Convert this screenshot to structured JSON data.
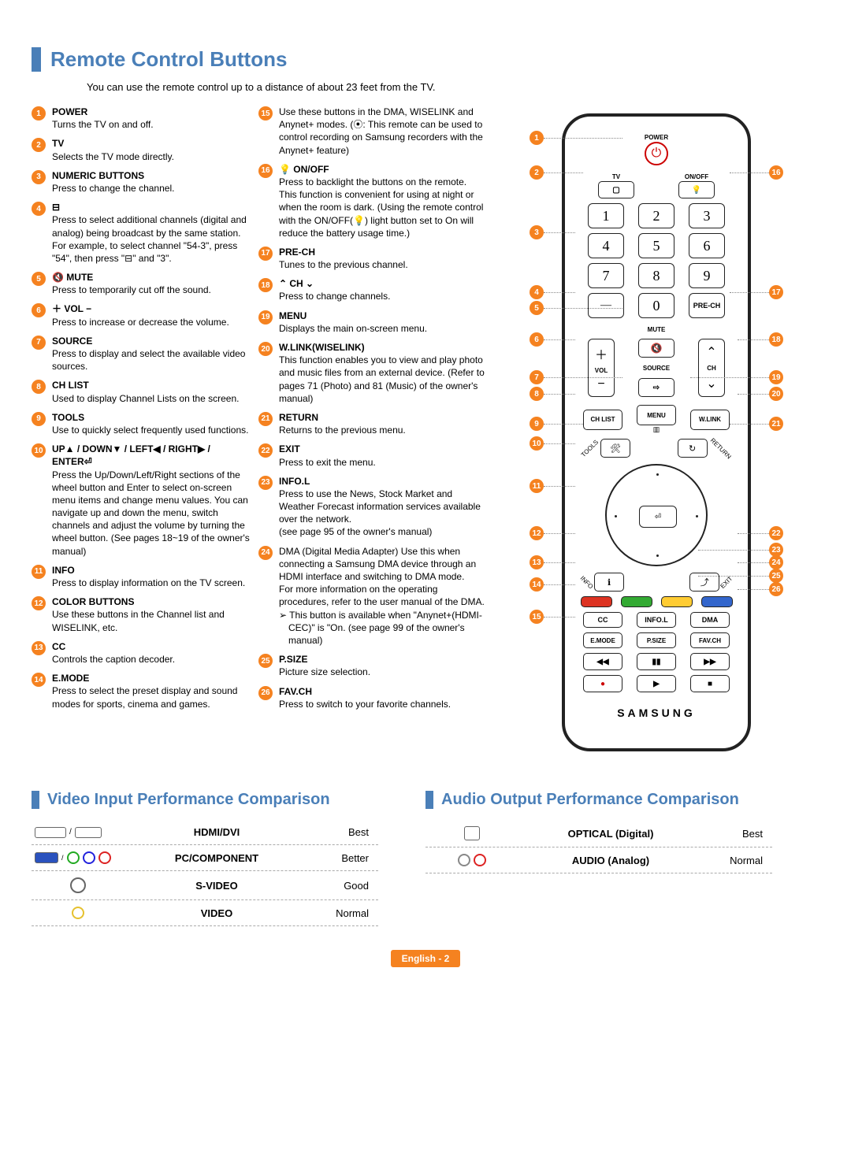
{
  "title": "Remote Control Buttons",
  "intro": "You can use the remote control up to a distance of about 23 feet from the TV.",
  "colors": {
    "accent": "#4a7fb8",
    "badge": "#f58220",
    "power": "#c00"
  },
  "left_items": [
    {
      "n": 1,
      "title": "POWER",
      "desc": "Turns the TV on and off."
    },
    {
      "n": 2,
      "title": "TV",
      "desc": "Selects the TV mode directly."
    },
    {
      "n": 3,
      "title": "NUMERIC BUTTONS",
      "desc": "Press to change the channel."
    },
    {
      "n": 4,
      "title": "⊟",
      "desc": "Press to select additional channels (digital and analog) being broadcast by the same station. For example, to select channel \"54-3\", press \"54\", then press \"⊟\" and \"3\"."
    },
    {
      "n": 5,
      "title": "🔇 MUTE",
      "desc": "Press to temporarily cut off the sound."
    },
    {
      "n": 6,
      "title": "＋ VOL −",
      "desc": "Press to increase or decrease the volume."
    },
    {
      "n": 7,
      "title": "SOURCE",
      "desc": "Press to display and select the available video sources."
    },
    {
      "n": 8,
      "title": "CH LIST",
      "desc": "Used to display Channel Lists on the screen."
    },
    {
      "n": 9,
      "title": "TOOLS",
      "desc": "Use to quickly select frequently used functions."
    },
    {
      "n": 10,
      "title": "UP▲ / DOWN▼ / LEFT◀ / RIGHT▶ / ENTER⏎",
      "desc": "Press the Up/Down/Left/Right sections of the wheel button and Enter to select on-screen menu items and change menu values. You can navigate up and down the menu, switch channels and adjust the volume by turning the wheel button. (See pages 18~19 of the owner's manual)"
    },
    {
      "n": 11,
      "title": "INFO",
      "desc": "Press to display information on the TV screen."
    },
    {
      "n": 12,
      "title": "COLOR BUTTONS",
      "desc": "Use these buttons in the Channel list and WISELINK, etc."
    },
    {
      "n": 13,
      "title": "CC",
      "desc": "Controls the caption decoder."
    },
    {
      "n": 14,
      "title": "E.MODE",
      "desc": "Press to select the preset display and sound modes for sports, cinema and games."
    }
  ],
  "mid_items": [
    {
      "n": 15,
      "desc": "Use these buttons in the DMA, WISELINK and Anynet+ modes. (⦿: This remote can be used to control recording on Samsung recorders with the Anynet+ feature)"
    },
    {
      "n": 16,
      "title": "💡 ON/OFF",
      "desc": "Press to backlight the buttons on the remote.\nThis function is convenient for using at night or when the room is dark. (Using the remote control with the ON/OFF(💡) light button set to On will reduce the battery usage time.)"
    },
    {
      "n": 17,
      "title": "PRE-CH",
      "desc": "Tunes to the previous channel."
    },
    {
      "n": 18,
      "title": "⌃ CH ⌄",
      "desc": "Press to change channels."
    },
    {
      "n": 19,
      "title": "MENU",
      "desc": "Displays the main on-screen menu."
    },
    {
      "n": 20,
      "title": "W.LINK(WISELINK)",
      "desc": "This function enables you to view and play photo and music files from an external device. (Refer to pages 71 (Photo) and 81 (Music) of the owner's manual)"
    },
    {
      "n": 21,
      "title": "RETURN",
      "desc": "Returns to the previous menu."
    },
    {
      "n": 22,
      "title": "EXIT",
      "desc": "Press to exit the menu."
    },
    {
      "n": 23,
      "title": "INFO.L",
      "desc": "Press to use the News, Stock Market and Weather Forecast information services available over the network.\n(see page 95 of the owner's manual)"
    },
    {
      "n": 24,
      "desc": "DMA (Digital Media Adapter) Use this when connecting a Samsung DMA device through an HDMI interface and switching to DMA mode.\nFor more information on the operating procedures, refer to the user manual of the DMA.",
      "sub": "This button is available when \"Anynet+(HDMI-CEC)\" is \"On. (see page 99 of the owner's manual)"
    },
    {
      "n": 25,
      "title": "P.SIZE",
      "desc": "Picture size selection."
    },
    {
      "n": 26,
      "title": "FAV.CH",
      "desc": "Press to switch to your favorite channels."
    }
  ],
  "video_title": "Video Input Performance Comparison",
  "audio_title": "Audio Output Performance Comparison",
  "video_rows": [
    {
      "label": "HDMI/DVI",
      "value": "Best"
    },
    {
      "label": "PC/COMPONENT",
      "value": "Better"
    },
    {
      "label": "S-VIDEO",
      "value": "Good"
    },
    {
      "label": "VIDEO",
      "value": "Normal"
    }
  ],
  "audio_rows": [
    {
      "label": "OPTICAL (Digital)",
      "value": "Best"
    },
    {
      "label": "AUDIO (Analog)",
      "value": "Normal"
    }
  ],
  "footer": "English - 2",
  "remote_labels": {
    "power": "POWER",
    "tv": "TV",
    "onoff": "ON/OFF",
    "prech": "PRE-CH",
    "mute": "MUTE",
    "vol": "VOL",
    "source": "SOURCE",
    "ch": "CH",
    "chlist": "CH LIST",
    "menu": "MENU",
    "wlink": "W.LINK",
    "cc": "CC",
    "infol": "INFO.L",
    "dma": "DMA",
    "emode": "E.MODE",
    "psize": "P.SIZE",
    "favch": "FAV.CH",
    "brand": "SAMSUNG",
    "info_side": "INFO",
    "exit_side": "EXIT",
    "tools_side": "TOOLS",
    "return_side": "RETURN"
  }
}
